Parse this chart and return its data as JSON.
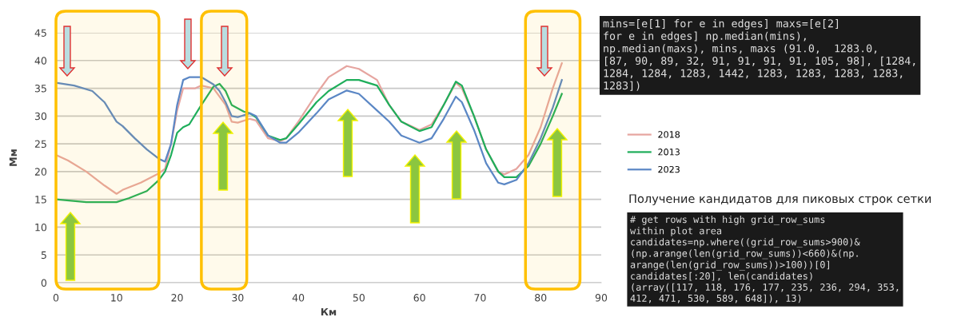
{
  "chart_data": {
    "type": "line",
    "xlabel": "Км",
    "ylabel": "Мм",
    "xlim": [
      0,
      90
    ],
    "xticks": [
      0,
      10,
      20,
      30,
      40,
      50,
      60,
      70,
      80,
      90
    ],
    "ylim": [
      0,
      45
    ],
    "yticks": [
      0,
      5,
      10,
      15,
      20,
      25,
      30,
      35,
      40,
      45
    ],
    "grid": "y",
    "legend": "right",
    "marker": "none",
    "line_style": "solid",
    "series": [
      {
        "name": "2018",
        "color": "#e6a5a0",
        "x": [
          0,
          2,
          5,
          8,
          10,
          11,
          14,
          17,
          18,
          19,
          20,
          21,
          22,
          23,
          24,
          26,
          28,
          29,
          30,
          32,
          33,
          35,
          37,
          38,
          40,
          43,
          45,
          48,
          50,
          53,
          55,
          57,
          60,
          62,
          64,
          66,
          67,
          69,
          71,
          73,
          74,
          76,
          78,
          80,
          82,
          83.5
        ],
        "values": [
          23,
          22,
          20,
          17.5,
          16,
          16.7,
          18,
          19.7,
          20.5,
          25,
          31,
          35,
          35,
          35,
          35.5,
          35,
          32,
          29,
          28.8,
          29.5,
          29.2,
          26,
          25.5,
          26,
          29,
          34,
          37,
          39,
          38.5,
          36.5,
          32,
          29,
          27.5,
          28.5,
          32,
          36,
          35,
          30,
          24,
          20,
          19.5,
          20.5,
          23,
          28,
          35,
          39.5
        ]
      },
      {
        "name": "2013",
        "color": "#1fae5b",
        "x": [
          0,
          5,
          10,
          12,
          15,
          17,
          18,
          19,
          20,
          21,
          22,
          24,
          26,
          27,
          28,
          29,
          31,
          32,
          33,
          35,
          37,
          38,
          40,
          43,
          45,
          48,
          50,
          53,
          55,
          57,
          60,
          62,
          64,
          66,
          67,
          69,
          71,
          73,
          74,
          76,
          78,
          80,
          82,
          83.5
        ],
        "values": [
          15,
          14.5,
          14.5,
          15.2,
          16.5,
          18.5,
          20,
          23,
          27,
          28,
          28.5,
          32,
          35.3,
          35.8,
          34.5,
          32,
          30.8,
          30.5,
          29.8,
          26.5,
          25.7,
          26,
          28.5,
          32.5,
          34.5,
          36.5,
          36.5,
          35.5,
          32,
          29,
          27.3,
          28,
          32,
          36.2,
          35.5,
          30,
          24,
          20,
          19,
          19,
          21,
          25,
          30,
          34
        ]
      },
      {
        "name": "2023",
        "color": "#5b87c5",
        "x": [
          0,
          3,
          6,
          8,
          10,
          11,
          13,
          15,
          17,
          18,
          19,
          20,
          21,
          22,
          24,
          26,
          27,
          28,
          29,
          30,
          32,
          33,
          35,
          37,
          38,
          40,
          43,
          45,
          48,
          50,
          53,
          55,
          57,
          60,
          62,
          64,
          66,
          67,
          69,
          71,
          73,
          74,
          76,
          78,
          80,
          82,
          83.5
        ],
        "values": [
          36,
          35.5,
          34.5,
          32.5,
          29,
          28.2,
          26,
          24,
          22.3,
          21.8,
          25,
          32,
          36.5,
          37,
          37,
          35.7,
          34.5,
          32.5,
          30,
          29.8,
          30.5,
          30,
          26.5,
          25.2,
          25.2,
          27,
          30.5,
          33,
          34.6,
          34,
          31,
          29,
          26.5,
          25.2,
          26,
          29.5,
          33.5,
          32.5,
          27.5,
          21.5,
          18,
          17.7,
          18.5,
          21.5,
          26,
          31.5,
          36.5
        ]
      }
    ],
    "bands": [
      {
        "axis": "x",
        "from": 0,
        "to": 17,
        "color": "#ffc000"
      },
      {
        "axis": "x",
        "from": 24,
        "to": 31.5,
        "color": "#ffc000"
      },
      {
        "axis": "x",
        "from": 77.5,
        "to": 86.5,
        "color": "#ffc000"
      }
    ],
    "annotations": [
      "mins=[e[1] for e in edges] maxs=[e[2]\nfor e in edges] np.median(mins),\nnp.median(maxs), mins, maxs (91.0,  1283.0,\n[87, 90, 89, 32, 91, 91, 91, 91, 105, 98], [1284,\n1284, 1284, 1283, 1442, 1283, 1283, 1283, 1283,\n1283])",
      "Получение кандидатов для пиковых строк сетки",
      "# get rows with high grid_row_sums\nwithin plot area\ncandidates=np.where((grid_row_sums>900)&\n(np.arange(len(grid_row_sums))<660)&(np.\narange(len(grid_row_sums))>100))[0]\ncandidates[:20], len(candidates)\n(array([117, 118, 176, 177, 235, 236, 294, 353,\n412, 471, 530, 589, 648]), 13)"
    ]
  }
}
